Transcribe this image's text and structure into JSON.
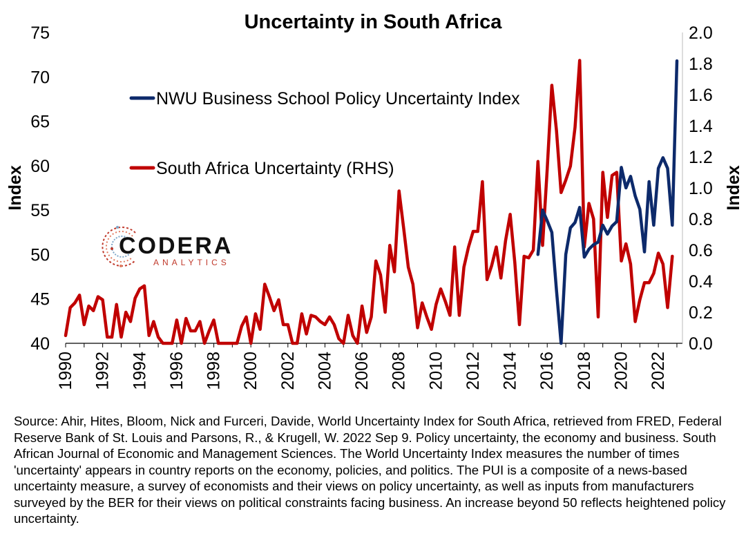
{
  "chart_data": {
    "type": "line",
    "title": "Uncertainty in South Africa",
    "ylabel_left": "Index",
    "ylabel_right": "Index",
    "ylim_left": [
      40,
      75
    ],
    "ylim_right": [
      0.0,
      2.0
    ],
    "y_ticks_left": [
      "40",
      "45",
      "50",
      "55",
      "60",
      "65",
      "70",
      "75"
    ],
    "y_ticks_right": [
      "0.0",
      "0.2",
      "0.4",
      "0.6",
      "0.8",
      "1.0",
      "1.2",
      "1.4",
      "1.6",
      "1.8",
      "2.0"
    ],
    "x_ticks": [
      "1990",
      "1992",
      "1994",
      "1996",
      "1998",
      "2000",
      "2002",
      "2004",
      "2006",
      "2008",
      "2010",
      "2012",
      "2014",
      "2016",
      "2018",
      "2020",
      "2022"
    ],
    "xlim": [
      1990,
      2023.3
    ],
    "grid": false,
    "legend_position": "upper-left",
    "series": [
      {
        "name": "NWU Business School Policy Uncertainty Index",
        "axis": "left",
        "color": "#0d2a6b",
        "x": [
          2015.5,
          2015.75,
          2016.0,
          2016.25,
          2016.5,
          2016.75,
          2017.0,
          2017.25,
          2017.5,
          2017.75,
          2018.0,
          2018.25,
          2018.5,
          2018.75,
          2019.0,
          2019.25,
          2019.5,
          2019.75,
          2020.0,
          2020.25,
          2020.5,
          2020.75,
          2021.0,
          2021.25,
          2021.5,
          2021.75,
          2022.0,
          2022.25,
          2022.5,
          2022.75,
          2023.0
        ],
        "values": [
          50.0,
          55.0,
          53.8,
          52.5,
          46.0,
          40.0,
          50.0,
          53.0,
          53.6,
          55.3,
          49.7,
          50.6,
          51.1,
          51.4,
          53.3,
          52.3,
          53.2,
          53.7,
          59.8,
          57.5,
          58.8,
          56.6,
          55.1,
          50.3,
          58.2,
          53.3,
          59.7,
          60.9,
          59.7,
          53.3,
          71.8
        ]
      },
      {
        "name": "South Africa Uncertainty (RHS)",
        "axis": "right",
        "color": "#c00000",
        "x": [
          1990.0,
          1990.25,
          1990.5,
          1990.75,
          1991.0,
          1991.25,
          1991.5,
          1991.75,
          1992.0,
          1992.25,
          1992.5,
          1992.75,
          1993.0,
          1993.25,
          1993.5,
          1993.75,
          1994.0,
          1994.25,
          1994.5,
          1994.75,
          1995.0,
          1995.25,
          1995.5,
          1995.75,
          1996.0,
          1996.25,
          1996.5,
          1996.75,
          1997.0,
          1997.25,
          1997.5,
          1997.75,
          1998.0,
          1998.25,
          1998.5,
          1998.75,
          1999.0,
          1999.25,
          1999.5,
          1999.75,
          2000.0,
          2000.25,
          2000.5,
          2000.75,
          2001.0,
          2001.25,
          2001.5,
          2001.75,
          2002.0,
          2002.25,
          2002.5,
          2002.75,
          2003.0,
          2003.25,
          2003.5,
          2003.75,
          2004.0,
          2004.25,
          2004.5,
          2004.75,
          2005.0,
          2005.25,
          2005.5,
          2005.75,
          2006.0,
          2006.25,
          2006.5,
          2006.75,
          2007.0,
          2007.25,
          2007.5,
          2007.75,
          2008.0,
          2008.25,
          2008.5,
          2008.75,
          2009.0,
          2009.25,
          2009.5,
          2009.75,
          2010.0,
          2010.25,
          2010.5,
          2010.75,
          2011.0,
          2011.25,
          2011.5,
          2011.75,
          2012.0,
          2012.25,
          2012.5,
          2012.75,
          2013.0,
          2013.25,
          2013.5,
          2013.75,
          2014.0,
          2014.25,
          2014.5,
          2014.75,
          2015.0,
          2015.25,
          2015.5,
          2015.75,
          2016.0,
          2016.25,
          2016.5,
          2016.75,
          2017.0,
          2017.25,
          2017.5,
          2017.75,
          2018.0,
          2018.25,
          2018.5,
          2018.75,
          2019.0,
          2019.25,
          2019.5,
          2019.75,
          2020.0,
          2020.25,
          2020.5,
          2020.75,
          2021.0,
          2021.25,
          2021.5,
          2021.75,
          2022.0,
          2022.25,
          2022.5,
          2022.75
        ],
        "values": [
          0.05,
          0.23,
          0.26,
          0.31,
          0.12,
          0.24,
          0.21,
          0.3,
          0.28,
          0.04,
          0.04,
          0.25,
          0.04,
          0.2,
          0.14,
          0.29,
          0.35,
          0.37,
          0.05,
          0.14,
          0.04,
          0.0,
          0.0,
          0.0,
          0.15,
          0.0,
          0.16,
          0.08,
          0.08,
          0.14,
          0.0,
          0.08,
          0.15,
          0.0,
          0.0,
          0.0,
          0.0,
          0.0,
          0.11,
          0.17,
          0.0,
          0.19,
          0.09,
          0.38,
          0.3,
          0.21,
          0.28,
          0.12,
          0.12,
          0.0,
          0.0,
          0.19,
          0.06,
          0.18,
          0.17,
          0.14,
          0.12,
          0.17,
          0.12,
          0.03,
          0.0,
          0.18,
          0.05,
          0.0,
          0.24,
          0.07,
          0.17,
          0.53,
          0.44,
          0.2,
          0.63,
          0.46,
          0.98,
          0.74,
          0.49,
          0.38,
          0.1,
          0.26,
          0.17,
          0.09,
          0.25,
          0.35,
          0.27,
          0.18,
          0.62,
          0.18,
          0.49,
          0.62,
          0.72,
          0.72,
          1.04,
          0.41,
          0.5,
          0.62,
          0.42,
          0.66,
          0.83,
          0.52,
          0.12,
          0.56,
          0.55,
          0.6,
          1.17,
          0.63,
          1.12,
          1.66,
          1.37,
          0.97,
          1.05,
          1.14,
          1.39,
          1.82,
          0.62,
          0.9,
          0.8,
          0.17,
          1.1,
          0.81,
          1.08,
          1.1,
          0.53,
          0.64,
          0.51,
          0.14,
          0.28,
          0.39,
          0.39,
          0.45,
          0.58,
          0.51,
          0.23,
          0.56
        ]
      }
    ]
  },
  "logo": {
    "name": "CODERA",
    "tagline": "ANALYTICS"
  },
  "source_text": "Source: Ahir, Hites, Bloom, Nick and Furceri, Davide, World Uncertainty Index for South Africa, retrieved from FRED, Federal Reserve Bank of St. Louis and Parsons, R., & Krugell, W. 2022 Sep 9. Policy uncertainty, the economy and business. South African Journal of Economic and Management Sciences. The World Uncertainty Index measures the number of times 'uncertainty' appears in country reports on the economy, policies, and politics. The PUI is a composite of a news-based uncertainty measure, a survey of economists and their views on policy uncertainty, as well as inputs from manufacturers surveyed by the BER for their views on political constraints facing business. An increase beyond 50 reflects heightened policy uncertainty."
}
